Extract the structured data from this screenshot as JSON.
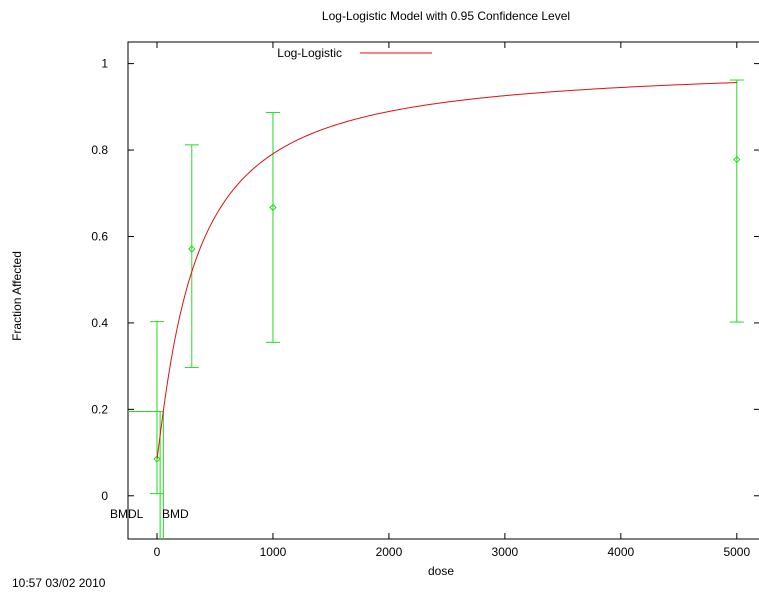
{
  "chart_data": {
    "type": "line",
    "title": "Log-Logistic Model with 0.95 Confidence Level",
    "xlabel": "dose",
    "ylabel": "Fraction Affected",
    "xlim": [
      -250,
      5200
    ],
    "ylim": [
      -0.1,
      1.05
    ],
    "x_ticks": [
      0,
      1000,
      2000,
      3000,
      4000,
      5000
    ],
    "y_ticks": [
      0,
      0.2,
      0.4,
      0.6,
      0.8,
      1
    ],
    "legend_position": "top-center",
    "grid": false,
    "series": [
      {
        "name": "Log-Logistic",
        "kind": "fitted-curve",
        "color": "#e01010",
        "background": 0.085,
        "slope": 1.1,
        "ed50": 330,
        "x_range": [
          0,
          5000
        ]
      }
    ],
    "observations": {
      "color": "#22dd22",
      "points": [
        {
          "x": 0,
          "y": 0.085,
          "lower": 0.005,
          "upper": 0.403
        },
        {
          "x": 300,
          "y": 0.571,
          "lower": 0.297,
          "upper": 0.812
        },
        {
          "x": 1000,
          "y": 0.667,
          "lower": 0.355,
          "upper": 0.887
        },
        {
          "x": 5000,
          "y": 0.778,
          "lower": 0.402,
          "upper": 0.962
        }
      ]
    },
    "bmd_markers": {
      "bmr_level": 0.195,
      "bmdl": 27,
      "bmd": 55,
      "bmdl_label": "BMDL",
      "bmd_label": "BMD"
    }
  },
  "footer": {
    "timestamp": "10:57 03/02 2010"
  }
}
